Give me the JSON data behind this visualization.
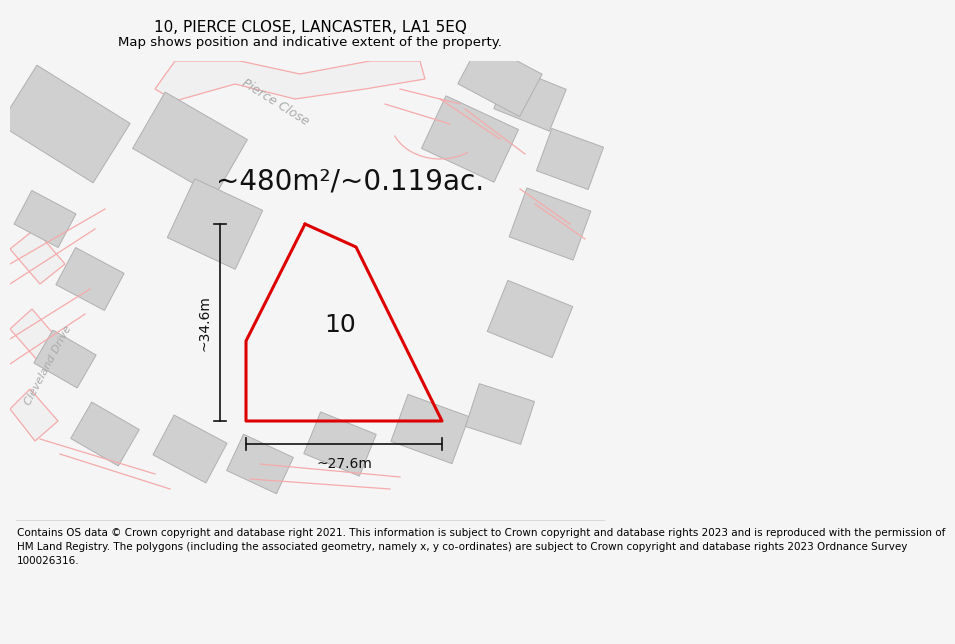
{
  "title": "10, PIERCE CLOSE, LANCASTER, LA1 5EQ",
  "subtitle": "Map shows position and indicative extent of the property.",
  "area_text": "~480m²/~0.119ac.",
  "label_10": "10",
  "dim_height": "~34.6m",
  "dim_width": "~27.6m",
  "road_label_pierce": "Pierce Close",
  "road_label_cleve": "Cleveland Drive",
  "footer_line1": "Contains OS data © Crown copyright and database right 2021. This information is subject to Crown copyright and database rights 2023 and is reproduced with the permission of",
  "footer_line2": "HM Land Registry. The polygons (including the associated geometry, namely x, y co-ordinates) are subject to Crown copyright and database rights 2023 Ordnance Survey",
  "footer_line3": "100026316.",
  "bg_color": "#f5f5f5",
  "map_bg": "#ffffff",
  "plot_color": "#dd0000",
  "building_fill": "#d0d0d0",
  "building_edge": "#b0b0b0",
  "road_edge_color": "#f5aaaa",
  "road_label_color": "#aaaaaa",
  "dim_color": "#111111",
  "title_fontsize": 11,
  "subtitle_fontsize": 9.5,
  "area_fontsize": 20,
  "label_fontsize": 18,
  "footer_fontsize": 7.5,
  "dim_fontsize": 10,
  "road_label_fontsize": 9
}
